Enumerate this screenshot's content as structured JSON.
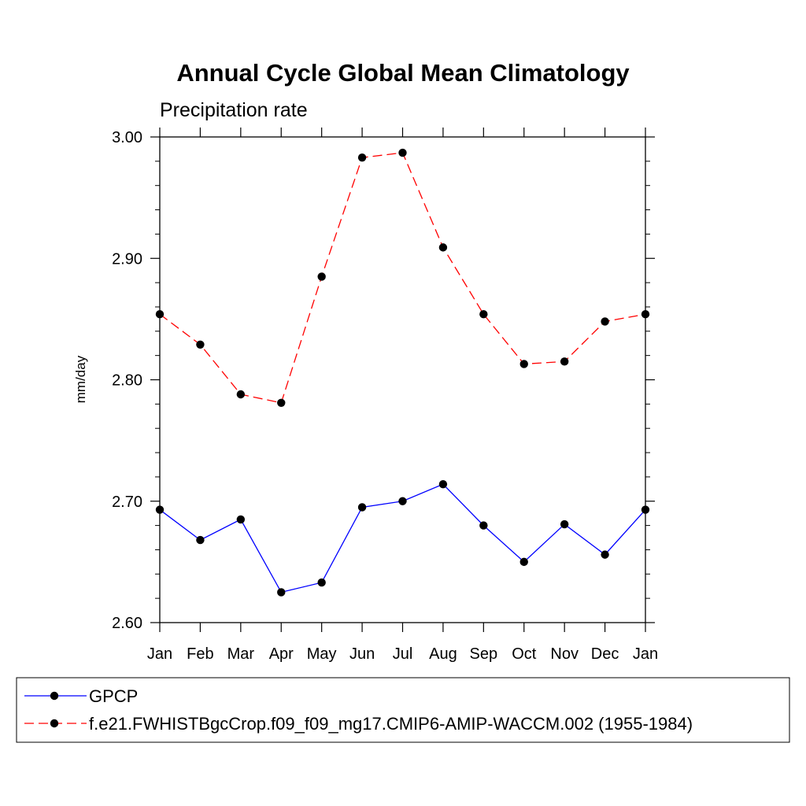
{
  "chart_data": {
    "type": "line",
    "title": "Annual Cycle Global Mean Climatology",
    "subtitle": "Precipitation rate",
    "xlabel": "",
    "ylabel": "mm/day",
    "ylim": [
      2.6,
      3.0
    ],
    "yticks": [
      2.6,
      2.7,
      2.8,
      2.9,
      3.0
    ],
    "ytick_labels": [
      "2.60",
      "2.70",
      "2.80",
      "2.90",
      "3.00"
    ],
    "categories": [
      "Jan",
      "Feb",
      "Mar",
      "Apr",
      "May",
      "Jun",
      "Jul",
      "Aug",
      "Sep",
      "Oct",
      "Nov",
      "Dec",
      "Jan"
    ],
    "grid": false,
    "legend_position": "bottom",
    "series": [
      {
        "name": "GPCP",
        "color": "#0000ff",
        "dashed": false,
        "values": [
          2.693,
          2.668,
          2.685,
          2.625,
          2.633,
          2.695,
          2.7,
          2.714,
          2.68,
          2.65,
          2.681,
          2.656,
          2.693
        ]
      },
      {
        "name": "f.e21.FWHISTBgcCrop.f09_f09_mg17.CMIP6-AMIP-WACCM.002 (1955-1984)",
        "color": "#ff0000",
        "dashed": true,
        "values": [
          2.854,
          2.829,
          2.788,
          2.781,
          2.885,
          2.983,
          2.987,
          2.909,
          2.854,
          2.813,
          2.815,
          2.848,
          2.854
        ]
      }
    ]
  }
}
